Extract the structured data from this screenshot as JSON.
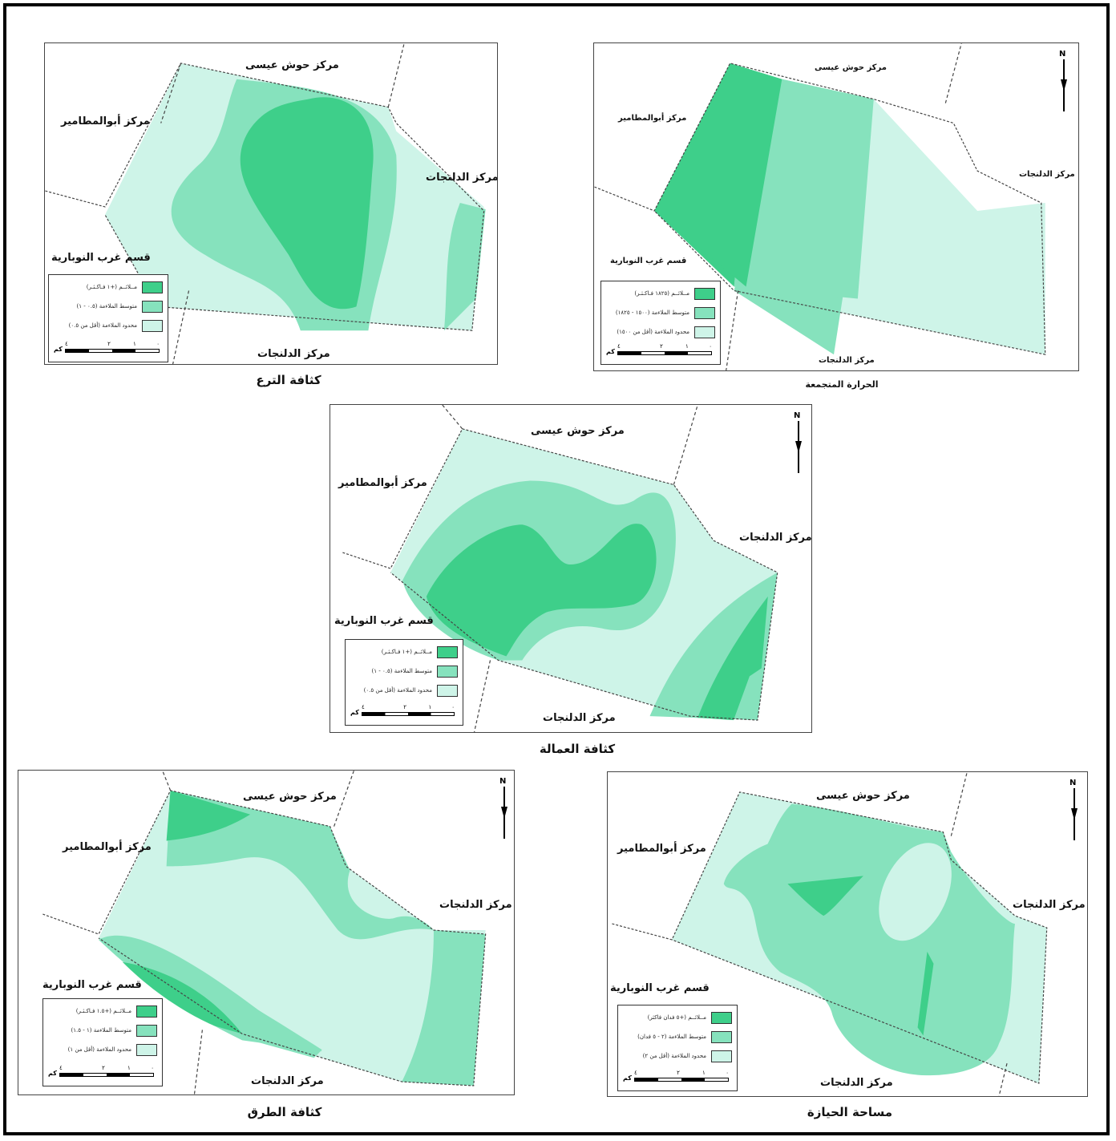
{
  "colors": {
    "high": "#3ecf8a",
    "mid": "#86e2bd",
    "low": "#cef4e8",
    "border": "#444444"
  },
  "north": "N",
  "scale": {
    "ticks": [
      "٤",
      "٢",
      "١",
      "٠"
    ],
    "unit": "كم"
  },
  "maps": [
    {
      "id": "canals",
      "title": "كثافة الترع",
      "labels": {
        "north_region": "مركز حوش عيسى",
        "west_region": "مركز أبوالمطامير",
        "east_region": "مركز الدلنجات",
        "southwest_region": "قسم غرب النوبارية",
        "south_region": "مركز الدلنجات"
      },
      "legend": [
        "مــلائــم (+١ فـاكـثـر)",
        "متوسط الملاءمة (٠.٥ - ١)",
        "محدود الملاءمة (أقل من ٠.٥)"
      ]
    },
    {
      "id": "heat",
      "title": "الحرارة المتجمعة",
      "labels": {
        "north_region": "مركز حوش عيسى",
        "west_region": "مركز أبوالمطامير",
        "east_region": "مركز الدلنجات",
        "southwest_region": "قسم غرب النوبارية",
        "south_region": "مركز الدلنجات"
      },
      "legend": [
        "مــلائــم (١٨٢٥ فـاكـثـر)",
        "متوسط الملاءمة (١٥٠٠ - ١٨٢٥)",
        "محدود الملاءمة (أقل من ١٥٠٠)"
      ]
    },
    {
      "id": "labor",
      "title": "كثافة العمالة",
      "labels": {
        "north_region": "مركز حوش عيسى",
        "west_region": "مركز أبوالمطامير",
        "east_region": "مركز الدلنجات",
        "southwest_region": "قسم غرب النوبارية",
        "south_region": "مركز الدلنجات"
      },
      "legend": [
        "مــلائــم (+١ فـاكـثـر)",
        "متوسط الملاءمة (٠.٥ - ١)",
        "محدود الملاءمة (أقل من ٠.٥)"
      ]
    },
    {
      "id": "roads",
      "title": "كثافة الطرق",
      "labels": {
        "north_region": "مركز حوش عيسى",
        "west_region": "مركز أبوالمطامير",
        "east_region": "مركز الدلنجات",
        "southwest_region": "قسم غرب النوبارية",
        "south_region": "مركز الدلنجات"
      },
      "legend": [
        "مــلائــم (+١.٥ فـاكـثـر)",
        "متوسط الملاءمة (١ - ١.٥)",
        "محدود الملاءمة (أقل من ١)"
      ]
    },
    {
      "id": "holding",
      "title": "مساحة الحيازة",
      "labels": {
        "north_region": "مركز حوش عيسى",
        "west_region": "مركز أبوالمطامير",
        "east_region": "مركز الدلنجات",
        "southwest_region": "قسم غرب النوبارية",
        "south_region": "مركز الدلنجات"
      },
      "legend": [
        "مــلائــم (+٥ فدان فاكثر)",
        "متوسط الملاءمة (٢ - ٥ فدان)",
        "محدود الملاءمة (أقل من ٢)"
      ]
    }
  ]
}
